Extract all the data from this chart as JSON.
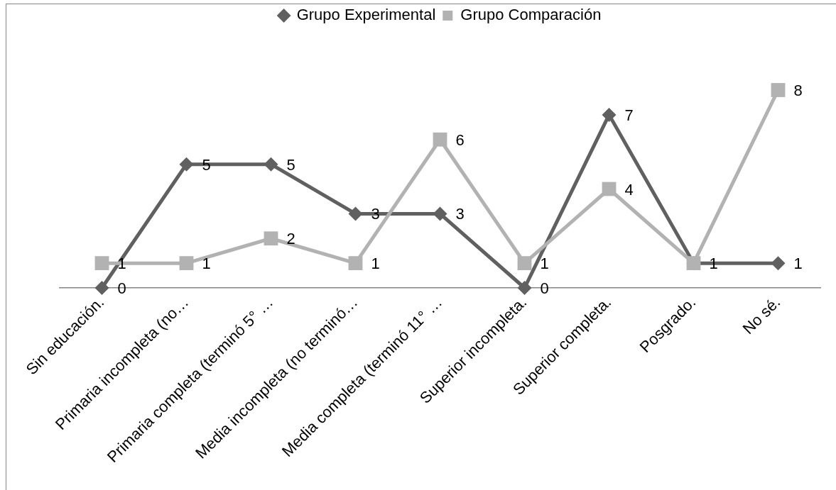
{
  "chart_data": {
    "type": "line",
    "categories": [
      "Sin educación.",
      "Primaria incompleta (no…",
      "Primaria completa (terminó 5° …",
      "Media incompleta (no terminó…",
      "Media completa (terminó 11° …",
      "Superior incompleta.",
      "Superior completa.",
      "Posgrado.",
      "No sé."
    ],
    "series": [
      {
        "name": "Grupo Experimental",
        "color": "#606060",
        "marker": "diamond",
        "values": [
          0,
          5,
          5,
          3,
          3,
          0,
          7,
          1,
          1
        ],
        "value_labels": [
          "0",
          "5",
          "5",
          "3",
          "3",
          "0",
          "7",
          "1",
          "1"
        ]
      },
      {
        "name": "Grupo Comparación",
        "color": "#b2b2b2",
        "marker": "square",
        "values": [
          1,
          1,
          2,
          1,
          6,
          1,
          4,
          1,
          8
        ],
        "value_labels": [
          "1",
          "1",
          "2",
          "1",
          "6",
          "1",
          "4",
          null,
          "8"
        ]
      }
    ],
    "legend": "top",
    "tick_labels": "x"
  }
}
